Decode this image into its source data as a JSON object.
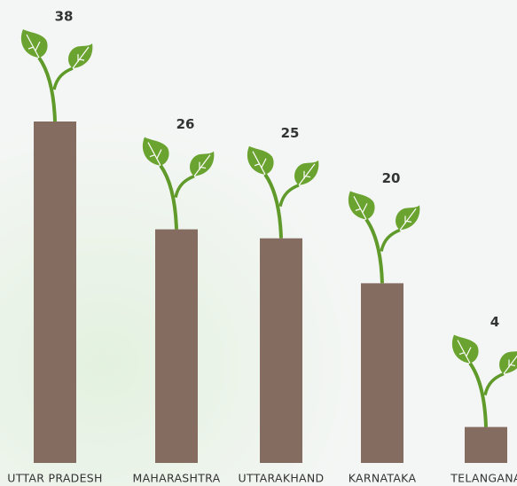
{
  "chart_data": {
    "type": "bar",
    "categories": [
      "UTTAR PRADESH",
      "MAHARASHTRA",
      "UTTARAKHAND",
      "KARNATAKA",
      "TELANGANA"
    ],
    "values": [
      38,
      26,
      25,
      20,
      4
    ],
    "color": "#856c61"
  }
}
